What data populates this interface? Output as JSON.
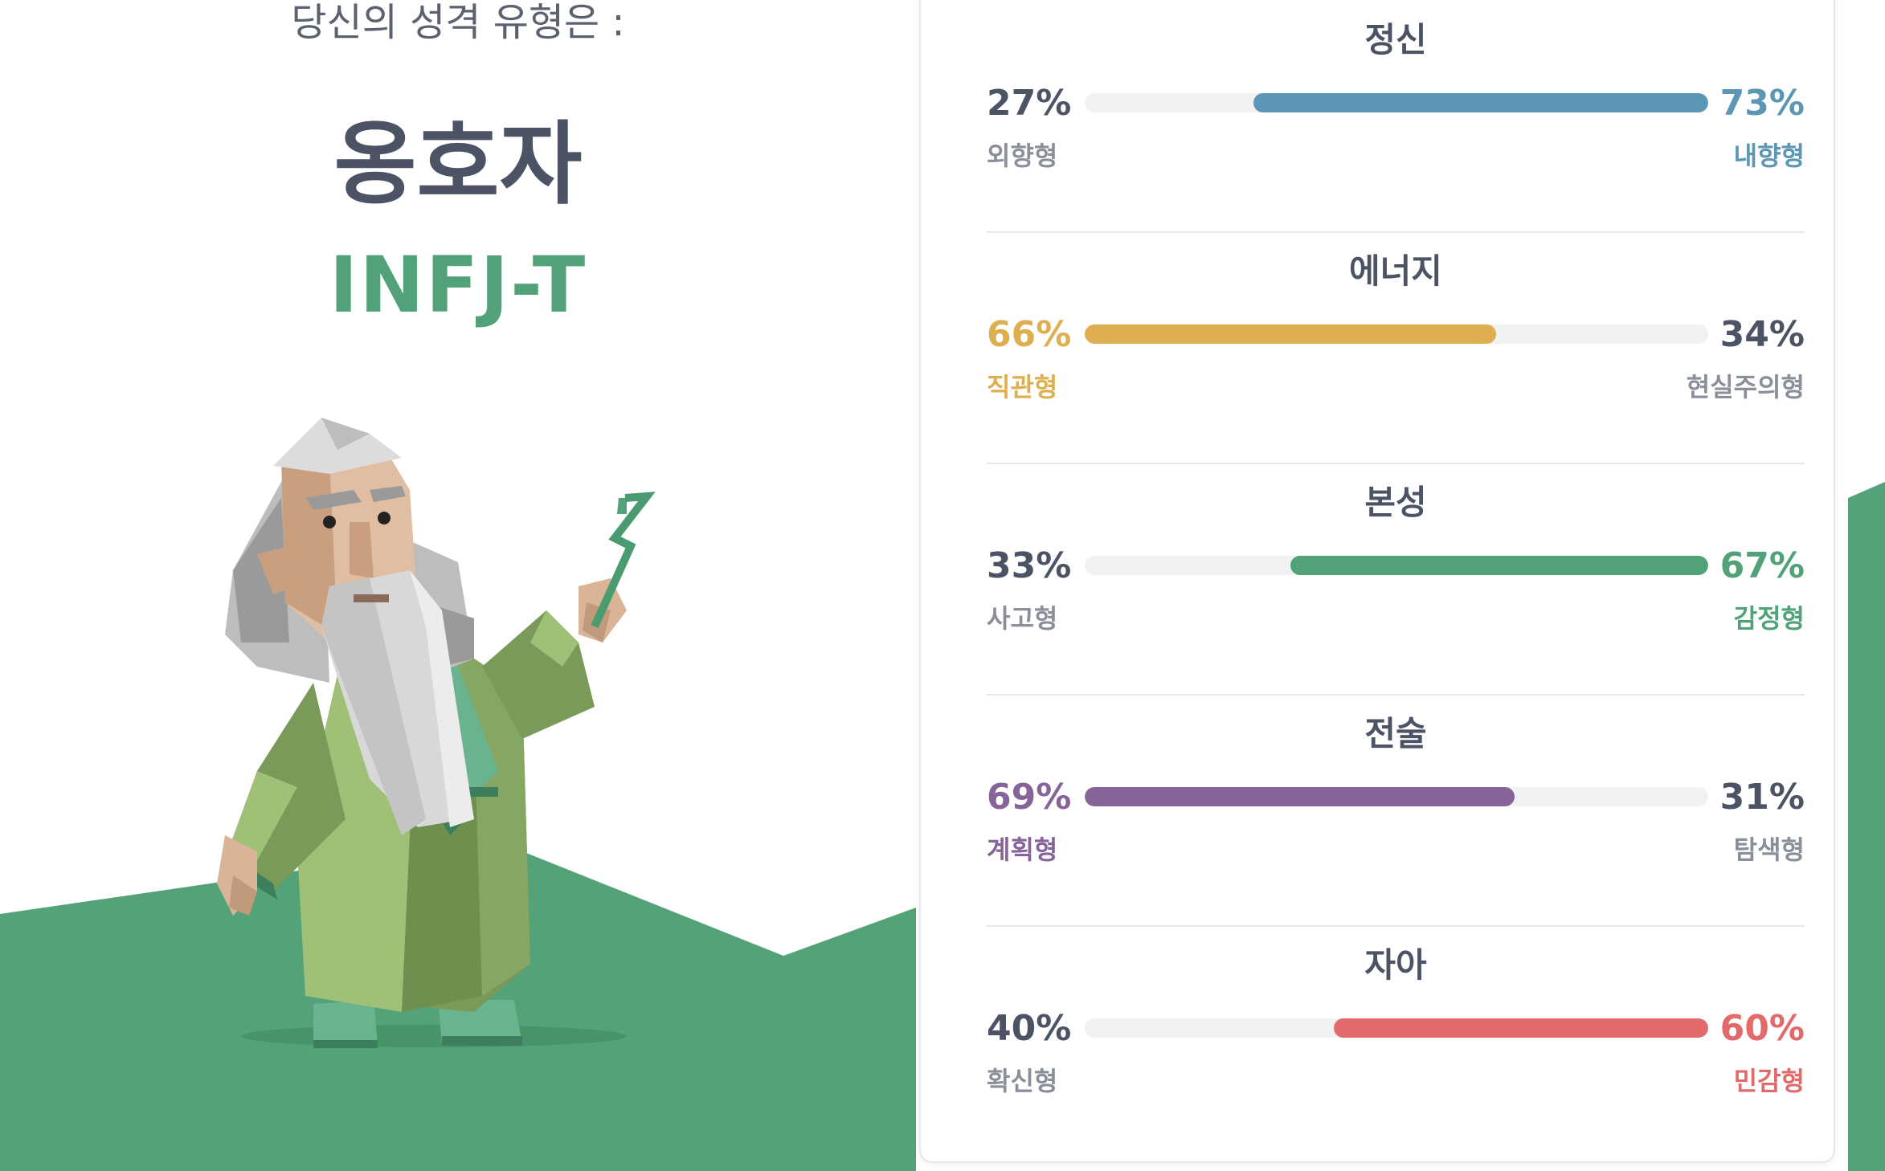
{
  "header": {
    "intro": "당신의 성격 유형은 :",
    "type_name": "옹호자",
    "type_code": "INFJ-T"
  },
  "colors": {
    "green": "#51a278",
    "blue": "#5b97b4",
    "yellow": "#deaf4e",
    "purple": "#86649a",
    "red": "#e26a6a",
    "neutral_text": "#4b5365",
    "neutral_label": "#8a8f99"
  },
  "traits": [
    {
      "title": "정신",
      "left_pct": "27%",
      "right_pct": "73%",
      "left_label": "외향형",
      "right_label": "내향형",
      "dominant": "right",
      "value": 0.73,
      "color": "#5b97b4"
    },
    {
      "title": "에너지",
      "left_pct": "66%",
      "right_pct": "34%",
      "left_label": "직관형",
      "right_label": "현실주의형",
      "dominant": "left",
      "value": 0.66,
      "color": "#deaf4e"
    },
    {
      "title": "본성",
      "left_pct": "33%",
      "right_pct": "67%",
      "left_label": "사고형",
      "right_label": "감정형",
      "dominant": "right",
      "value": 0.67,
      "color": "#51a278"
    },
    {
      "title": "전술",
      "left_pct": "69%",
      "right_pct": "31%",
      "left_label": "계획형",
      "right_label": "탐색형",
      "dominant": "left",
      "value": 0.69,
      "color": "#86649a"
    },
    {
      "title": "자아",
      "left_pct": "40%",
      "right_pct": "60%",
      "left_label": "확신형",
      "right_label": "민감형",
      "dominant": "right",
      "value": 0.6,
      "color": "#e26a6a"
    }
  ]
}
